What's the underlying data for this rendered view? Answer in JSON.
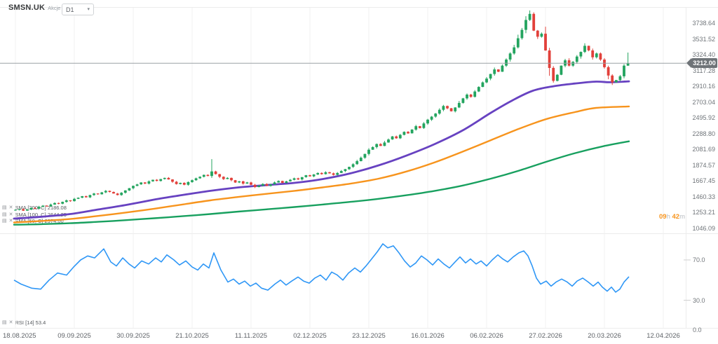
{
  "header": {
    "symbol": "SMSN.UK",
    "instrument_type": "Akcje",
    "timeframe": "D1"
  },
  "legend": {
    "rows": [
      {
        "name": "SMA [200, C]",
        "value": "2186.08",
        "color": "#18a05f"
      },
      {
        "name": "SMA [100, C]",
        "value": "2644.25",
        "color": "#f7941d"
      },
      {
        "name": "SMA [50, C]",
        "value": "2974.00",
        "color": "#6742c1"
      }
    ],
    "rsi_row": {
      "name": "RSI [14]",
      "value": "53.4"
    },
    "settings_icon": "▤",
    "close_icon": "✕"
  },
  "current_price": {
    "value": "3212.00"
  },
  "countdown": {
    "hours": "09",
    "hours_unit": "h",
    "minutes": "42",
    "minutes_unit": "m"
  },
  "colors": {
    "up": "#23a45f",
    "down": "#e2403a",
    "grid": "#f1f1f1",
    "price_line": "#9aa0a5",
    "badge_bg": "#6e7377",
    "rsi": "#2f97f6",
    "sma200": "#18a05f",
    "sma100": "#f7941d",
    "sma50": "#6742c1"
  },
  "chart_data": {
    "type": "candlestick",
    "title": "SMSN.UK D1",
    "price_axis": {
      "tick_labels": [
        "3738.64",
        "3531.52",
        "3324.40",
        "3117.28",
        "2910.16",
        "2703.04",
        "2495.92",
        "2288.80",
        "2081.69",
        "1874.57",
        "1667.45",
        "1460.33",
        "1253.21",
        "1046.09"
      ]
    },
    "x_axis": {
      "tick_labels": [
        "18.08.2025",
        "09.09.2025",
        "30.09.2025",
        "21.10.2025",
        "11.11.2025",
        "02.12.2025",
        "23.12.2025",
        "16.01.2026",
        "06.02.2026",
        "27.02.2026",
        "20.03.2026",
        "12.04.2026"
      ]
    },
    "price_line": {
      "value": 3212.0
    },
    "candles": {
      "first_open": 1278,
      "closes": [
        1285,
        1295,
        1275,
        1290,
        1310,
        1300,
        1325,
        1340,
        1330,
        1355,
        1375,
        1365,
        1390,
        1410,
        1400,
        1430,
        1445,
        1465,
        1450,
        1480,
        1500,
        1490,
        1515,
        1535,
        1520,
        1500,
        1480,
        1510,
        1540,
        1570,
        1600,
        1620,
        1645,
        1630,
        1660,
        1680,
        1665,
        1690,
        1705,
        1685,
        1655,
        1625,
        1640,
        1615,
        1650,
        1675,
        1700,
        1720,
        1745,
        1730,
        1790,
        1755,
        1720,
        1690,
        1705,
        1675,
        1645,
        1660,
        1630,
        1645,
        1615,
        1585,
        1605,
        1625,
        1600,
        1620,
        1645,
        1665,
        1640,
        1660,
        1680,
        1700,
        1685,
        1715,
        1740,
        1725,
        1750,
        1770,
        1755,
        1780,
        1765,
        1745,
        1770,
        1795,
        1820,
        1850,
        1885,
        1925,
        1970,
        2020,
        2075,
        2110,
        2150,
        2125,
        2170,
        2210,
        2250,
        2225,
        2270,
        2310,
        2290,
        2340,
        2385,
        2360,
        2420,
        2470,
        2510,
        2550,
        2600,
        2650,
        2620,
        2580,
        2630,
        2690,
        2750,
        2800,
        2770,
        2840,
        2900,
        2960,
        3010,
        3070,
        3130,
        3100,
        3180,
        3260,
        3340,
        3420,
        3540,
        3650,
        3780,
        3860,
        3640,
        3560,
        3600,
        3380,
        3150,
        2980,
        3060,
        3180,
        3250,
        3180,
        3230,
        3300,
        3360,
        3440,
        3380,
        3290,
        3340,
        3260,
        3160,
        3050,
        2960,
        2990,
        3040,
        3180,
        3212
      ],
      "wick_overrides": {
        "50": {
          "high": 1952
        },
        "131": {
          "high": 3905
        },
        "132": {
          "high": 3880
        },
        "156": {
          "high": 3352
        }
      }
    },
    "overlays": [
      {
        "name": "SMA 200",
        "color": "#18a05f",
        "points": [
          [
            20,
            1090
          ],
          [
            60,
            1098
          ],
          [
            100,
            1110
          ],
          [
            140,
            1128
          ],
          [
            180,
            1150
          ],
          [
            220,
            1175
          ],
          [
            260,
            1202
          ],
          [
            300,
            1230
          ],
          [
            340,
            1262
          ],
          [
            380,
            1292
          ],
          [
            420,
            1322
          ],
          [
            460,
            1355
          ],
          [
            500,
            1390
          ],
          [
            540,
            1430
          ],
          [
            580,
            1478
          ],
          [
            620,
            1535
          ],
          [
            660,
            1605
          ],
          [
            700,
            1695
          ],
          [
            740,
            1800
          ],
          [
            780,
            1920
          ],
          [
            820,
            2030
          ],
          [
            860,
            2120
          ],
          [
            897,
            2186
          ]
        ]
      },
      {
        "name": "SMA 100",
        "color": "#f7941d",
        "points": [
          [
            20,
            1120
          ],
          [
            60,
            1140
          ],
          [
            100,
            1165
          ],
          [
            140,
            1205
          ],
          [
            180,
            1250
          ],
          [
            220,
            1300
          ],
          [
            260,
            1355
          ],
          [
            300,
            1410
          ],
          [
            340,
            1455
          ],
          [
            380,
            1495
          ],
          [
            420,
            1535
          ],
          [
            460,
            1580
          ],
          [
            500,
            1630
          ],
          [
            540,
            1695
          ],
          [
            580,
            1790
          ],
          [
            620,
            1910
          ],
          [
            660,
            2050
          ],
          [
            700,
            2200
          ],
          [
            740,
            2350
          ],
          [
            780,
            2480
          ],
          [
            820,
            2570
          ],
          [
            850,
            2625
          ],
          [
            897,
            2644
          ]
        ]
      },
      {
        "name": "SMA 50",
        "color": "#6742c1",
        "points": [
          [
            20,
            1170
          ],
          [
            60,
            1195
          ],
          [
            100,
            1230
          ],
          [
            140,
            1290
          ],
          [
            180,
            1350
          ],
          [
            220,
            1420
          ],
          [
            260,
            1480
          ],
          [
            300,
            1535
          ],
          [
            340,
            1580
          ],
          [
            380,
            1610
          ],
          [
            420,
            1640
          ],
          [
            460,
            1690
          ],
          [
            500,
            1765
          ],
          [
            540,
            1870
          ],
          [
            580,
            2000
          ],
          [
            620,
            2150
          ],
          [
            660,
            2330
          ],
          [
            700,
            2560
          ],
          [
            730,
            2720
          ],
          [
            760,
            2850
          ],
          [
            790,
            2910
          ],
          [
            820,
            2945
          ],
          [
            850,
            2970
          ],
          [
            870,
            2962
          ],
          [
            897,
            2974
          ]
        ]
      }
    ],
    "indicator": {
      "name": "RSI [14]",
      "last_value": 53.4,
      "axis_labels": [
        "70.0",
        "30.0",
        "0.0"
      ],
      "points": [
        [
          20,
          50
        ],
        [
          30,
          46
        ],
        [
          45,
          42
        ],
        [
          58,
          41
        ],
        [
          70,
          50
        ],
        [
          82,
          57
        ],
        [
          95,
          55
        ],
        [
          105,
          63
        ],
        [
          115,
          70
        ],
        [
          125,
          74
        ],
        [
          135,
          72
        ],
        [
          148,
          81
        ],
        [
          158,
          68
        ],
        [
          166,
          64
        ],
        [
          175,
          72
        ],
        [
          184,
          66
        ],
        [
          192,
          62
        ],
        [
          202,
          69
        ],
        [
          212,
          66
        ],
        [
          222,
          72
        ],
        [
          230,
          68
        ],
        [
          238,
          75
        ],
        [
          248,
          70
        ],
        [
          256,
          65
        ],
        [
          265,
          69
        ],
        [
          274,
          63
        ],
        [
          282,
          60
        ],
        [
          290,
          66
        ],
        [
          298,
          62
        ],
        [
          305,
          77
        ],
        [
          315,
          60
        ],
        [
          325,
          48
        ],
        [
          333,
          51
        ],
        [
          341,
          46
        ],
        [
          349,
          49
        ],
        [
          357,
          44
        ],
        [
          365,
          47
        ],
        [
          373,
          42
        ],
        [
          382,
          40
        ],
        [
          392,
          46
        ],
        [
          400,
          50
        ],
        [
          408,
          45
        ],
        [
          416,
          49
        ],
        [
          425,
          53
        ],
        [
          433,
          49
        ],
        [
          441,
          47
        ],
        [
          449,
          52
        ],
        [
          457,
          55
        ],
        [
          465,
          50
        ],
        [
          473,
          58
        ],
        [
          481,
          55
        ],
        [
          489,
          50
        ],
        [
          497,
          57
        ],
        [
          506,
          62
        ],
        [
          514,
          58
        ],
        [
          522,
          64
        ],
        [
          530,
          71
        ],
        [
          538,
          78
        ],
        [
          546,
          86
        ],
        [
          553,
          82
        ],
        [
          561,
          84
        ],
        [
          569,
          77
        ],
        [
          577,
          69
        ],
        [
          585,
          63
        ],
        [
          593,
          67
        ],
        [
          601,
          74
        ],
        [
          609,
          70
        ],
        [
          617,
          65
        ],
        [
          625,
          71
        ],
        [
          633,
          66
        ],
        [
          641,
          62
        ],
        [
          649,
          68
        ],
        [
          656,
          73
        ],
        [
          664,
          67
        ],
        [
          671,
          71
        ],
        [
          679,
          66
        ],
        [
          686,
          69
        ],
        [
          694,
          64
        ],
        [
          702,
          70
        ],
        [
          710,
          75
        ],
        [
          717,
          71
        ],
        [
          724,
          68
        ],
        [
          732,
          73
        ],
        [
          740,
          77
        ],
        [
          747,
          79
        ],
        [
          753,
          74
        ],
        [
          759,
          64
        ],
        [
          765,
          52
        ],
        [
          771,
          46
        ],
        [
          779,
          49
        ],
        [
          786,
          44
        ],
        [
          793,
          48
        ],
        [
          801,
          51
        ],
        [
          809,
          48
        ],
        [
          816,
          44
        ],
        [
          823,
          49
        ],
        [
          831,
          52
        ],
        [
          839,
          48
        ],
        [
          846,
          44
        ],
        [
          853,
          48
        ],
        [
          859,
          43
        ],
        [
          866,
          39
        ],
        [
          872,
          43
        ],
        [
          878,
          38
        ],
        [
          884,
          41
        ],
        [
          890,
          48
        ],
        [
          897,
          53.4
        ]
      ]
    }
  }
}
